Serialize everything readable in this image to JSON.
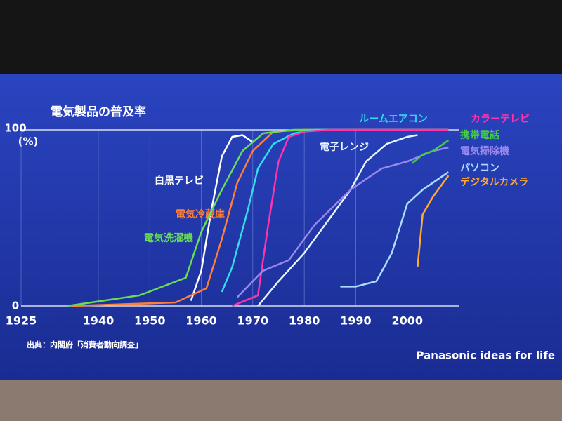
{
  "chart_data": {
    "type": "line",
    "title": "電気製品の普及率",
    "y_unit": "(%)",
    "source": "出典：内閣府「消費者動向調査」",
    "brand": "Panasonic ideas for life",
    "xlim": [
      1925,
      2010
    ],
    "xticks": [
      1925,
      1940,
      1950,
      1960,
      1970,
      1980,
      1990,
      2000
    ],
    "ylim": [
      0,
      100
    ],
    "yticks": [
      0,
      100
    ],
    "grid": true,
    "series": [
      {
        "name": "白黒テレビ",
        "color": "#ffffff",
        "x": [
          1958,
          1960,
          1962,
          1964,
          1966,
          1968,
          1970
        ],
        "values": [
          3,
          20,
          55,
          85,
          96,
          97,
          93
        ]
      },
      {
        "name": "電気冷蔵庫",
        "color": "#ff7f3a",
        "x": [
          1935,
          1955,
          1961,
          1964,
          1967,
          1970,
          1974,
          1980,
          2008
        ],
        "values": [
          0,
          2,
          10,
          38,
          70,
          88,
          99,
          100,
          100
        ]
      },
      {
        "name": "電気洗濯機",
        "color": "#66dd55",
        "x": [
          1934,
          1948,
          1957,
          1960,
          1964,
          1968,
          1972,
          1978,
          2008
        ],
        "values": [
          0,
          6,
          16,
          42,
          66,
          88,
          98,
          100,
          100
        ]
      },
      {
        "name": "ルームエアコン",
        "color": "#33ddee",
        "x": [
          1964,
          1966,
          1969,
          1971,
          1974,
          1978,
          1982,
          2008
        ],
        "values": [
          8,
          22,
          54,
          78,
          92,
          98,
          100,
          100
        ]
      },
      {
        "name": "カラーテレビ",
        "color": "#ff33aa",
        "x": [
          1966,
          1971,
          1973,
          1975,
          1977,
          1980,
          1985,
          2008
        ],
        "values": [
          0,
          6,
          46,
          82,
          96,
          99,
          100,
          100
        ]
      },
      {
        "name": "電子レンジ",
        "color": "#e8f4ff",
        "x": [
          1971,
          1975,
          1980,
          1985,
          1989,
          1992,
          1996,
          2000,
          2002
        ],
        "values": [
          0,
          14,
          30,
          50,
          66,
          82,
          92,
          96,
          97
        ]
      },
      {
        "name": "電気掃除機",
        "color": "#9988ee",
        "x": [
          1967,
          1972,
          1977,
          1982,
          1989,
          1995,
          2000,
          2005,
          2008
        ],
        "values": [
          5,
          20,
          26,
          46,
          66,
          78,
          82,
          88,
          90
        ]
      },
      {
        "name": "携帯電話",
        "color": "#44cc44",
        "x": [
          2001,
          2003,
          2005,
          2008
        ],
        "values": [
          81,
          86,
          88,
          94
        ]
      },
      {
        "name": "パソコン",
        "color": "#aaddff",
        "x": [
          1987,
          1990,
          1994,
          1997,
          2000,
          2003,
          2005,
          2008
        ],
        "values": [
          11,
          11,
          14,
          30,
          58,
          66,
          70,
          76
        ]
      },
      {
        "name": "デジタルカメラ",
        "color": "#ffaa33",
        "x": [
          2002,
          2003,
          2005,
          2008
        ],
        "values": [
          22,
          52,
          62,
          74
        ]
      }
    ]
  }
}
